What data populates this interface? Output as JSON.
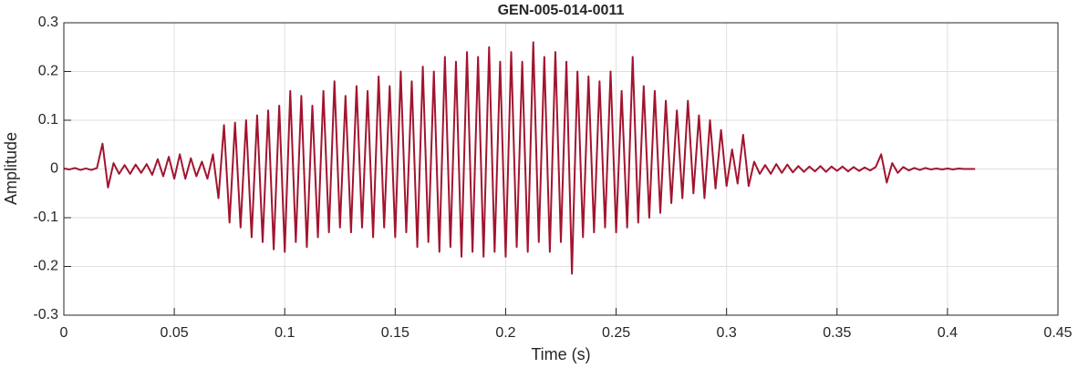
{
  "chart_data": {
    "type": "line",
    "title": "GEN-005-014-0011",
    "x_label": "Time (s)",
    "y_label": "Amplitude",
    "xlim": [
      0,
      0.45
    ],
    "ylim": [
      -0.3,
      0.3
    ],
    "xticks": [
      0,
      0.05,
      0.1,
      0.15,
      0.2,
      0.25,
      0.3,
      0.35,
      0.4,
      0.45
    ],
    "yticks": [
      -0.3,
      -0.2,
      -0.1,
      0,
      0.1,
      0.2,
      0.3
    ],
    "grid": true,
    "x": [
      0,
      0.0025,
      0.005,
      0.0075,
      0.01,
      0.0125,
      0.015,
      0.0175,
      0.02,
      0.0225,
      0.025,
      0.0275,
      0.03,
      0.0325,
      0.035,
      0.0375,
      0.04,
      0.0425,
      0.045,
      0.0475,
      0.05,
      0.0525,
      0.055,
      0.0575,
      0.06,
      0.0625,
      0.065,
      0.0675,
      0.07,
      0.0725,
      0.075,
      0.0775,
      0.08,
      0.0825,
      0.085,
      0.0875,
      0.09,
      0.0925,
      0.095,
      0.0975,
      0.1,
      0.1025,
      0.105,
      0.1075,
      0.11,
      0.1125,
      0.115,
      0.1175,
      0.12,
      0.1225,
      0.125,
      0.1275,
      0.13,
      0.1325,
      0.135,
      0.1375,
      0.14,
      0.1425,
      0.145,
      0.1475,
      0.15,
      0.1525,
      0.155,
      0.1575,
      0.16,
      0.1625,
      0.165,
      0.1675,
      0.17,
      0.1725,
      0.175,
      0.1775,
      0.18,
      0.1825,
      0.185,
      0.1875,
      0.19,
      0.1925,
      0.195,
      0.1975,
      0.2,
      0.2025,
      0.205,
      0.2075,
      0.21,
      0.2125,
      0.215,
      0.2175,
      0.22,
      0.2225,
      0.225,
      0.2275,
      0.23,
      0.2325,
      0.235,
      0.2375,
      0.24,
      0.2425,
      0.245,
      0.2475,
      0.25,
      0.2525,
      0.255,
      0.2575,
      0.26,
      0.2625,
      0.265,
      0.2675,
      0.27,
      0.2725,
      0.275,
      0.2775,
      0.28,
      0.2825,
      0.285,
      0.2875,
      0.29,
      0.2925,
      0.295,
      0.2975,
      0.3,
      0.3025,
      0.305,
      0.3075,
      0.31,
      0.3125,
      0.315,
      0.3175,
      0.32,
      0.3225,
      0.325,
      0.3275,
      0.33,
      0.3325,
      0.335,
      0.3375,
      0.34,
      0.3425,
      0.345,
      0.3475,
      0.35,
      0.3525,
      0.355,
      0.3575,
      0.36,
      0.3625,
      0.365,
      0.3675,
      0.37,
      0.3725,
      0.375,
      0.3775,
      0.38,
      0.3825,
      0.385,
      0.3875,
      0.39,
      0.3925,
      0.395,
      0.3975,
      0.4,
      0.4025,
      0.405,
      0.4075,
      0.41,
      0.4125
    ],
    "series": [
      {
        "color": "#a2142f",
        "values": [
          0.001,
          -0.001,
          0.002,
          -0.002,
          0.001,
          -0.002,
          0.002,
          0.052,
          -0.038,
          0.012,
          -0.01,
          0.008,
          -0.01,
          0.009,
          -0.008,
          0.01,
          -0.012,
          0.02,
          -0.015,
          0.025,
          -0.02,
          0.03,
          -0.02,
          0.022,
          -0.015,
          0.015,
          -0.02,
          0.03,
          -0.06,
          0.09,
          -0.11,
          0.095,
          -0.12,
          0.1,
          -0.14,
          0.11,
          -0.15,
          0.12,
          -0.165,
          0.13,
          -0.17,
          0.16,
          -0.15,
          0.15,
          -0.16,
          0.13,
          -0.14,
          0.16,
          -0.13,
          0.18,
          -0.12,
          0.15,
          -0.13,
          0.17,
          -0.12,
          0.16,
          -0.14,
          0.19,
          -0.12,
          0.17,
          -0.14,
          0.2,
          -0.13,
          0.18,
          -0.16,
          0.21,
          -0.15,
          0.2,
          -0.17,
          0.23,
          -0.16,
          0.22,
          -0.18,
          0.24,
          -0.17,
          0.23,
          -0.18,
          0.25,
          -0.17,
          0.22,
          -0.18,
          0.24,
          -0.16,
          0.22,
          -0.17,
          0.26,
          -0.15,
          0.23,
          -0.17,
          0.24,
          -0.15,
          0.22,
          -0.215,
          0.2,
          -0.14,
          0.19,
          -0.13,
          0.18,
          -0.12,
          0.2,
          -0.13,
          0.16,
          -0.12,
          0.23,
          -0.11,
          0.17,
          -0.1,
          0.16,
          -0.09,
          0.14,
          -0.07,
          0.12,
          -0.06,
          0.14,
          -0.05,
          0.11,
          -0.06,
          0.1,
          -0.04,
          0.08,
          -0.035,
          0.04,
          -0.03,
          0.07,
          -0.035,
          0.015,
          -0.01,
          0.008,
          -0.01,
          0.01,
          -0.008,
          0.009,
          -0.007,
          0.006,
          -0.006,
          0.005,
          -0.005,
          0.006,
          -0.006,
          0.005,
          -0.004,
          0.005,
          -0.005,
          0.004,
          -0.004,
          0.003,
          -0.003,
          0.004,
          0.03,
          -0.028,
          0.012,
          -0.008,
          0.004,
          -0.003,
          0.002,
          -0.002,
          0.002,
          -0.001,
          0.001,
          -0.001,
          0.001,
          -0.001,
          0.001,
          0,
          0,
          0
        ]
      }
    ]
  }
}
